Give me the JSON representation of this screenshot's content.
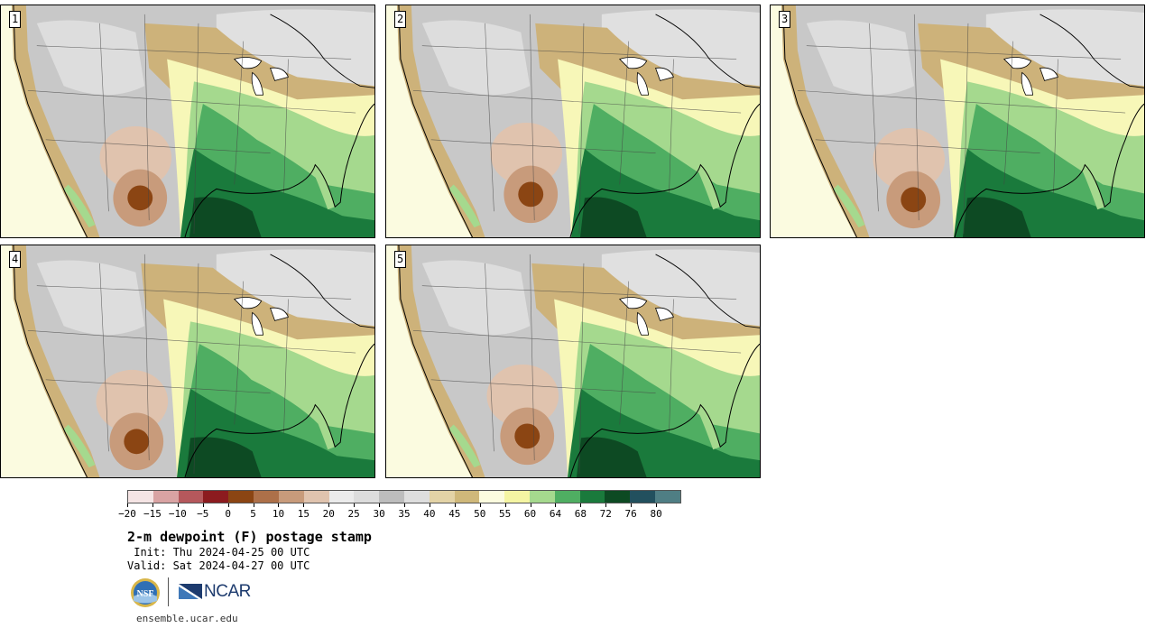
{
  "panels": [
    {
      "label": "1",
      "variant": 0
    },
    {
      "label": "2",
      "variant": 1
    },
    {
      "label": "3",
      "variant": 2
    },
    {
      "label": "4",
      "variant": 3
    },
    {
      "label": "5",
      "variant": 4
    }
  ],
  "colorbar": {
    "colors": [
      "#f5e4e4",
      "#d9a3a3",
      "#b5585c",
      "#8c1b1f",
      "#8b4513",
      "#ad7049",
      "#c89b7b",
      "#e0c3ae",
      "#ebebeb",
      "#dcdcdc",
      "#bdbdbd",
      "#dedede",
      "#e3d3a6",
      "#cfb87a",
      "#fcfcdf",
      "#f5f5a3",
      "#a5d98e",
      "#4fae62",
      "#1a7a3c",
      "#0d4a23",
      "#22505e",
      "#4f7e84"
    ],
    "ticks": [
      "−20",
      "−15",
      "−10",
      "−5",
      "0",
      "5",
      "10",
      "15",
      "20",
      "25",
      "30",
      "35",
      "40",
      "45",
      "50",
      "55",
      "60",
      "64",
      "68",
      "72",
      "76",
      "80"
    ]
  },
  "title": "2-m dewpoint (F) postage stamp",
  "init": " Init: Thu 2024-04-25 00 UTC",
  "valid": "Valid: Sat 2024-04-27 00 UTC",
  "logos": {
    "nsf": "NSF",
    "ncar": "NCAR"
  },
  "site": "ensemble.ucar.edu",
  "map_colors": {
    "ocean_west": "#fbfbe0",
    "land_gray": "#c8c8c8",
    "land_light": "#e2e2e2",
    "tan": "#cdb27a",
    "tan_light": "#e3d3a6",
    "pale_yellow": "#f7f7b8",
    "light_green": "#a5d98e",
    "green": "#4fae62",
    "dark_green": "#1a7a3c",
    "darkest_green": "#0d4a23",
    "brown": "#c89b7b",
    "dark_brown": "#8b4513",
    "pale_brown": "#e0c3ae"
  }
}
